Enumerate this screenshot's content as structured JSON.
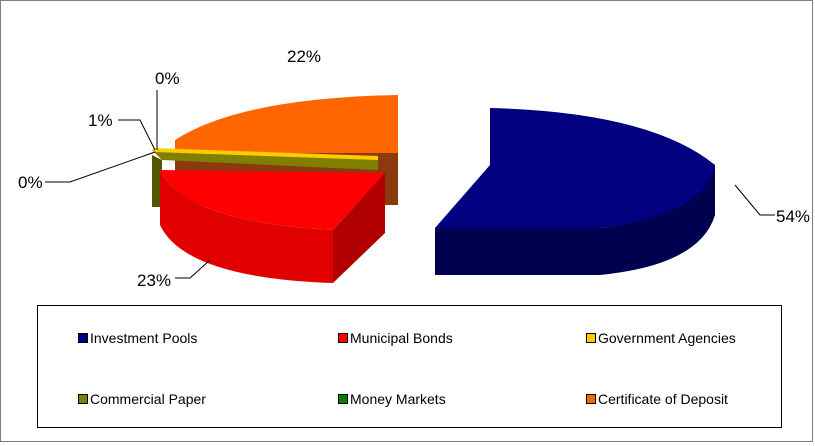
{
  "chart_data": {
    "type": "pie",
    "style": "3d-exploded",
    "slices": [
      {
        "name": "Investment Pools",
        "value": 54,
        "label": "54%",
        "color": "#000080",
        "side": "#000050"
      },
      {
        "name": "Municipal Bonds",
        "value": 23,
        "label": "23%",
        "color": "#ff0000",
        "side": "#b00000"
      },
      {
        "name": "Government Agencies",
        "value": 0,
        "label": "0%",
        "color": "#ffcc00",
        "side": "#b38f00"
      },
      {
        "name": "Commercial Paper",
        "value": 1,
        "label": "1%",
        "color": "#808000",
        "side": "#555500"
      },
      {
        "name": "Money Markets",
        "value": 0,
        "label": "0%",
        "color": "#008000",
        "side": "#005000"
      },
      {
        "name": "Certificate of Deposit",
        "value": 22,
        "label": "22%",
        "color": "#ff6600",
        "side": "#8b3a10"
      }
    ],
    "legend_position": "bottom"
  }
}
